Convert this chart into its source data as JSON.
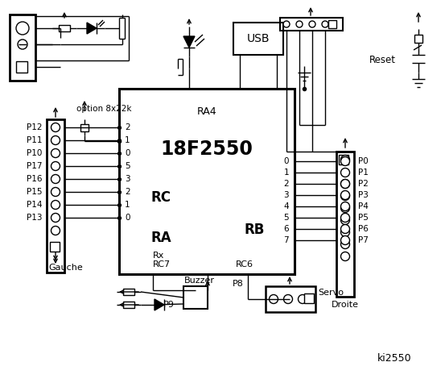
{
  "bg_color": "#ffffff",
  "chip_label": "18F2550",
  "chip_sublabel": "RA4",
  "rc_label": "RC",
  "ra_label": "RA",
  "rb_label": "RB",
  "rc_pins_left": [
    "2",
    "1",
    "0",
    "5",
    "3",
    "2",
    "1",
    "0"
  ],
  "rb_pins_right": [
    "0",
    "1",
    "2",
    "3",
    "4",
    "5",
    "6",
    "7"
  ],
  "left_labels": [
    "P12",
    "P11",
    "P10",
    "P17",
    "P16",
    "P15",
    "P14",
    "P13"
  ],
  "right_labels": [
    "P0",
    "P1",
    "P2",
    "P3",
    "P4",
    "P5",
    "P6",
    "P7"
  ],
  "text_gauche": "Gauche",
  "text_droite": "Droite",
  "text_buzzer": "Buzzer",
  "text_servo": "Servo",
  "text_usb": "USB",
  "text_reset": "Reset",
  "text_option": "option 8x22k",
  "text_p9": "P9",
  "text_p8": "P8",
  "text_ki": "ki2550",
  "text_rx": "Rx",
  "text_rc7": "RC7",
  "text_rc6": "RC6"
}
